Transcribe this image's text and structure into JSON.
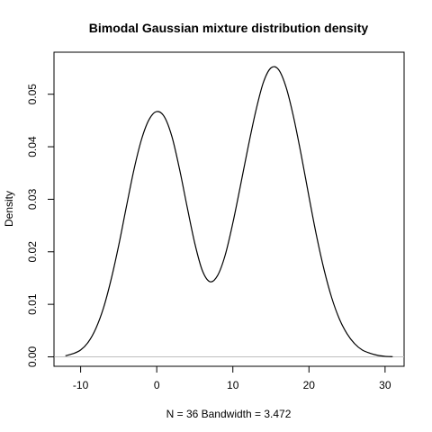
{
  "chart_data": {
    "type": "line",
    "title": "Bimodal Gaussian mixture distribution density",
    "xlabel": "N = 36   Bandwidth = 3.472",
    "ylabel": "Density",
    "xlim": [
      -13.5,
      32.5
    ],
    "ylim": [
      -0.0018,
      0.058
    ],
    "x_ticks": [
      -10,
      0,
      10,
      20,
      30
    ],
    "x_tick_labels": [
      "-10",
      "0",
      "10",
      "20",
      "30"
    ],
    "y_ticks": [
      0.0,
      0.01,
      0.02,
      0.03,
      0.04,
      0.05
    ],
    "y_tick_labels": [
      "0.00",
      "0.01",
      "0.02",
      "0.03",
      "0.04",
      "0.05"
    ],
    "baseline": 0,
    "grid": false,
    "series": [
      {
        "x": [
          -12,
          -11,
          -10,
          -9,
          -8,
          -7,
          -6,
          -5,
          -4,
          -3,
          -2,
          -1,
          0,
          1,
          2,
          3,
          4,
          5,
          6,
          7,
          8,
          9,
          10,
          11,
          12,
          13,
          14,
          15,
          16,
          17,
          18,
          19,
          20,
          21,
          22,
          23,
          24,
          25,
          26,
          27,
          28,
          29,
          30,
          31
        ],
        "y": [
          0.0002,
          0.0006,
          0.0013,
          0.0028,
          0.0054,
          0.0093,
          0.0147,
          0.0212,
          0.0285,
          0.0356,
          0.0414,
          0.0452,
          0.0467,
          0.0457,
          0.0419,
          0.0357,
          0.0285,
          0.0216,
          0.0164,
          0.0143,
          0.0155,
          0.0194,
          0.0255,
          0.0326,
          0.0399,
          0.0467,
          0.0522,
          0.055,
          0.0547,
          0.0513,
          0.0455,
          0.0383,
          0.0305,
          0.023,
          0.0165,
          0.0112,
          0.0072,
          0.0044,
          0.0025,
          0.0013,
          0.0007,
          0.0003,
          0.0001,
          3e-05
        ]
      }
    ]
  }
}
